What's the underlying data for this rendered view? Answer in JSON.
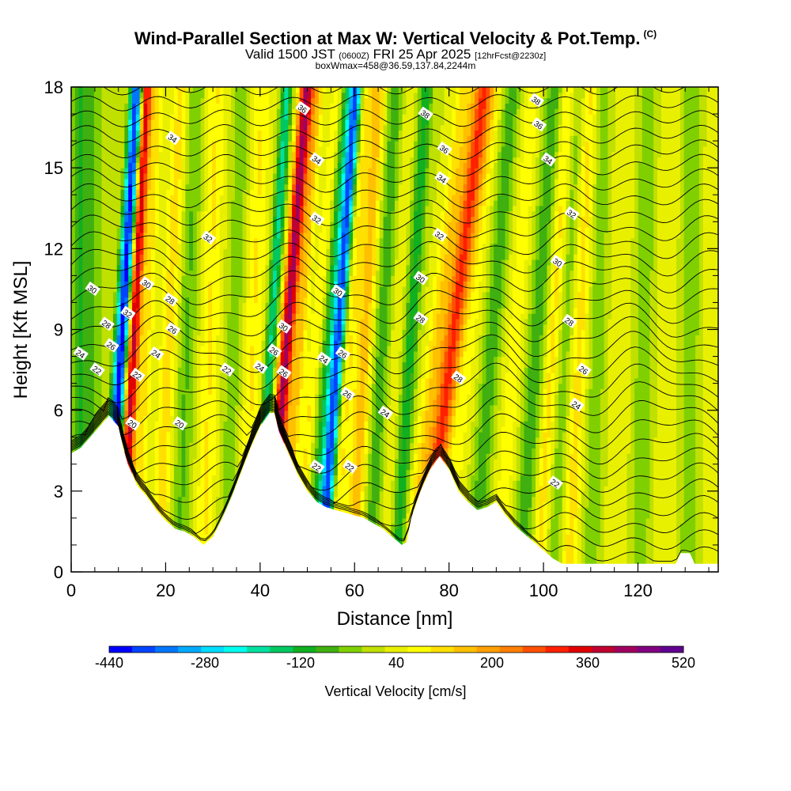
{
  "header": {
    "title": "Wind-Parallel Section at Max W: Vertical Velocity & Pot.Temp.",
    "copyright": "(C)",
    "subtitle_a": "Valid 1500 JST",
    "subtitle_b": "(0600Z)",
    "subtitle_c": "FRI 25 Apr 2025",
    "subtitle_d": "[12hrFcst@2230z]",
    "info": "boxWmax=458@36.59,137.84,2244m"
  },
  "chart_data": {
    "type": "heatmap",
    "xlabel": "Distance [nm]",
    "ylabel": "Height [Kft MSL]",
    "xlim": [
      0,
      137
    ],
    "ylim": [
      0,
      18
    ],
    "x_ticks": [
      0,
      20,
      40,
      60,
      80,
      100,
      120
    ],
    "y_ticks": [
      0,
      3,
      6,
      9,
      12,
      15,
      18
    ],
    "grid": false,
    "colorbar": {
      "title": "Vertical Velocity [cm/s]",
      "min": -440,
      "max": 520,
      "tick_labels": [
        -440,
        -280,
        -120,
        40,
        200,
        360,
        520
      ],
      "colors": [
        "#0000ff",
        "#0044ff",
        "#0077ff",
        "#00aaff",
        "#00ddff",
        "#00ffee",
        "#00e0a0",
        "#00c860",
        "#10b020",
        "#40b010",
        "#80d000",
        "#c0e000",
        "#e8f000",
        "#ffff00",
        "#ffe000",
        "#ffc000",
        "#ffa000",
        "#ff8000",
        "#ff5000",
        "#ff2000",
        "#e00000",
        "#c00030",
        "#a00060",
        "#800080",
        "#600090"
      ]
    },
    "terrain": [
      {
        "x": 0,
        "h": 4.4
      },
      {
        "x": 2,
        "h": 4.6
      },
      {
        "x": 4,
        "h": 5.0
      },
      {
        "x": 6,
        "h": 5.4
      },
      {
        "x": 8,
        "h": 5.8
      },
      {
        "x": 10,
        "h": 5.4
      },
      {
        "x": 11,
        "h": 4.6
      },
      {
        "x": 12,
        "h": 4.0
      },
      {
        "x": 14,
        "h": 3.2
      },
      {
        "x": 16,
        "h": 2.8
      },
      {
        "x": 18,
        "h": 2.3
      },
      {
        "x": 20,
        "h": 1.9
      },
      {
        "x": 22,
        "h": 1.6
      },
      {
        "x": 24,
        "h": 1.5
      },
      {
        "x": 26,
        "h": 1.3
      },
      {
        "x": 28,
        "h": 1.0
      },
      {
        "x": 30,
        "h": 1.3
      },
      {
        "x": 32,
        "h": 2.0
      },
      {
        "x": 34,
        "h": 2.8
      },
      {
        "x": 36,
        "h": 3.7
      },
      {
        "x": 38,
        "h": 4.6
      },
      {
        "x": 40,
        "h": 5.4
      },
      {
        "x": 42,
        "h": 5.9
      },
      {
        "x": 43,
        "h": 5.9
      },
      {
        "x": 44,
        "h": 5.2
      },
      {
        "x": 46,
        "h": 4.4
      },
      {
        "x": 48,
        "h": 3.6
      },
      {
        "x": 50,
        "h": 3.0
      },
      {
        "x": 52,
        "h": 2.6
      },
      {
        "x": 54,
        "h": 2.4
      },
      {
        "x": 56,
        "h": 2.3
      },
      {
        "x": 58,
        "h": 2.2
      },
      {
        "x": 60,
        "h": 2.1
      },
      {
        "x": 62,
        "h": 2.0
      },
      {
        "x": 64,
        "h": 1.8
      },
      {
        "x": 66,
        "h": 1.6
      },
      {
        "x": 68,
        "h": 1.3
      },
      {
        "x": 70,
        "h": 1.0
      },
      {
        "x": 71,
        "h": 1.1
      },
      {
        "x": 72,
        "h": 2.0
      },
      {
        "x": 74,
        "h": 3.0
      },
      {
        "x": 76,
        "h": 3.8
      },
      {
        "x": 78,
        "h": 4.3
      },
      {
        "x": 80,
        "h": 3.8
      },
      {
        "x": 82,
        "h": 3.0
      },
      {
        "x": 84,
        "h": 2.6
      },
      {
        "x": 86,
        "h": 2.3
      },
      {
        "x": 88,
        "h": 2.4
      },
      {
        "x": 90,
        "h": 2.6
      },
      {
        "x": 92,
        "h": 2.1
      },
      {
        "x": 94,
        "h": 1.7
      },
      {
        "x": 96,
        "h": 1.4
      },
      {
        "x": 98,
        "h": 1.1
      },
      {
        "x": 100,
        "h": 0.8
      },
      {
        "x": 102,
        "h": 0.5
      },
      {
        "x": 104,
        "h": 0.3
      },
      {
        "x": 110,
        "h": 0.3
      },
      {
        "x": 120,
        "h": 0.3
      },
      {
        "x": 128,
        "h": 0.3
      },
      {
        "x": 129,
        "h": 0.7
      },
      {
        "x": 131,
        "h": 0.7
      },
      {
        "x": 132,
        "h": 0.3
      },
      {
        "x": 137,
        "h": 0.3
      }
    ],
    "velocity_bands": [
      {
        "x": 2,
        "tilt": 0.0,
        "w": 2.0,
        "v": -120
      },
      {
        "x": 5,
        "tilt": 0.0,
        "w": 1.5,
        "v": -60
      },
      {
        "x": 9.5,
        "tilt": 0.35,
        "w": 1.2,
        "v": -360
      },
      {
        "x": 10.5,
        "tilt": 0.35,
        "w": 1.0,
        "v": -200
      },
      {
        "x": 12.5,
        "tilt": 0.28,
        "w": 1.4,
        "v": 360
      },
      {
        "x": 15.5,
        "tilt": 0.25,
        "w": 1.2,
        "v": 80
      },
      {
        "x": 20,
        "tilt": 0.28,
        "w": 1.8,
        "v": 100
      },
      {
        "x": 24,
        "tilt": 0.2,
        "w": 2.0,
        "v": -80
      },
      {
        "x": 29,
        "tilt": 0.15,
        "w": 2.0,
        "v": 80
      },
      {
        "x": 34,
        "tilt": 0.2,
        "w": 2.0,
        "v": -60
      },
      {
        "x": 38,
        "tilt": 0.2,
        "w": 2.0,
        "v": 80
      },
      {
        "x": 41.5,
        "tilt": 0.35,
        "w": 1.2,
        "v": -200
      },
      {
        "x": 44.5,
        "tilt": 0.45,
        "w": 1.5,
        "v": 400
      },
      {
        "x": 47.5,
        "tilt": 0.4,
        "w": 1.3,
        "v": 120
      },
      {
        "x": 50.5,
        "tilt": 0.5,
        "w": 1.2,
        "v": 80
      },
      {
        "x": 53.5,
        "tilt": 0.4,
        "w": 1.5,
        "v": -120
      },
      {
        "x": 55.5,
        "tilt": 0.4,
        "w": 1.3,
        "v": -400
      },
      {
        "x": 58,
        "tilt": 0.35,
        "w": 1.5,
        "v": 80
      },
      {
        "x": 61.5,
        "tilt": 0.3,
        "w": 1.8,
        "v": 140
      },
      {
        "x": 65,
        "tilt": 0.3,
        "w": 2.0,
        "v": -100
      },
      {
        "x": 68,
        "tilt": 0.3,
        "w": 1.5,
        "v": 40
      },
      {
        "x": 71,
        "tilt": 0.35,
        "w": 1.5,
        "v": -140
      },
      {
        "x": 75.5,
        "tilt": 0.65,
        "w": 1.8,
        "v": 100
      },
      {
        "x": 79,
        "tilt": 0.7,
        "w": 2.2,
        "v": 280
      },
      {
        "x": 83.5,
        "tilt": 0.55,
        "w": 1.8,
        "v": 40
      },
      {
        "x": 88,
        "tilt": 0.45,
        "w": 2.0,
        "v": -100
      },
      {
        "x": 93,
        "tilt": 0.4,
        "w": 2.2,
        "v": 60
      },
      {
        "x": 97.5,
        "tilt": 0.4,
        "w": 2.2,
        "v": -100
      },
      {
        "x": 101,
        "tilt": 0.35,
        "w": 1.5,
        "v": 100
      },
      {
        "x": 104,
        "tilt": 0.3,
        "w": 1.8,
        "v": -60
      },
      {
        "x": 107,
        "tilt": 0.25,
        "w": 1.8,
        "v": 100
      },
      {
        "x": 111,
        "tilt": 0.15,
        "w": 2.2,
        "v": -60
      },
      {
        "x": 116,
        "tilt": 0.1,
        "w": 2.5,
        "v": 40
      },
      {
        "x": 121,
        "tilt": 0.1,
        "w": 2.5,
        "v": -60
      },
      {
        "x": 126,
        "tilt": 0.05,
        "w": 2.5,
        "v": 40
      },
      {
        "x": 131,
        "tilt": 0.05,
        "w": 2.5,
        "v": -60
      },
      {
        "x": 135,
        "tilt": 0.05,
        "w": 2.0,
        "v": 30
      }
    ],
    "theta_contour_labels": [
      {
        "x": 4.5,
        "y": 10.5,
        "v": "30"
      },
      {
        "x": 7.5,
        "y": 9.2,
        "v": "28"
      },
      {
        "x": 2,
        "y": 8.1,
        "v": "24"
      },
      {
        "x": 8.5,
        "y": 8.4,
        "v": "26"
      },
      {
        "x": 5.5,
        "y": 7.5,
        "v": "22"
      },
      {
        "x": 12,
        "y": 9.6,
        "v": "32"
      },
      {
        "x": 16,
        "y": 10.7,
        "v": "30"
      },
      {
        "x": 21,
        "y": 10.1,
        "v": "28"
      },
      {
        "x": 21.5,
        "y": 9.0,
        "v": "26"
      },
      {
        "x": 18,
        "y": 8.1,
        "v": "24"
      },
      {
        "x": 14,
        "y": 7.3,
        "v": "22"
      },
      {
        "x": 13,
        "y": 5.5,
        "v": "20"
      },
      {
        "x": 23,
        "y": 5.5,
        "v": "20"
      },
      {
        "x": 21.5,
        "y": 16.1,
        "v": "34"
      },
      {
        "x": 29,
        "y": 12.4,
        "v": "32"
      },
      {
        "x": 33,
        "y": 7.5,
        "v": "22"
      },
      {
        "x": 40,
        "y": 7.6,
        "v": "24"
      },
      {
        "x": 43,
        "y": 8.2,
        "v": "26"
      },
      {
        "x": 45,
        "y": 7.4,
        "v": "26"
      },
      {
        "x": 45,
        "y": 9.1,
        "v": "30"
      },
      {
        "x": 49,
        "y": 17.2,
        "v": "36"
      },
      {
        "x": 52,
        "y": 15.3,
        "v": "34"
      },
      {
        "x": 52,
        "y": 13.1,
        "v": "32"
      },
      {
        "x": 56.5,
        "y": 10.4,
        "v": "30"
      },
      {
        "x": 53.5,
        "y": 7.9,
        "v": "24"
      },
      {
        "x": 57.5,
        "y": 8.1,
        "v": "26"
      },
      {
        "x": 58.5,
        "y": 6.6,
        "v": "26"
      },
      {
        "x": 52,
        "y": 3.9,
        "v": "22"
      },
      {
        "x": 59,
        "y": 3.9,
        "v": "22"
      },
      {
        "x": 66.5,
        "y": 5.9,
        "v": "24"
      },
      {
        "x": 75,
        "y": 17.0,
        "v": "38"
      },
      {
        "x": 79,
        "y": 15.7,
        "v": "36"
      },
      {
        "x": 78.5,
        "y": 14.6,
        "v": "34"
      },
      {
        "x": 78,
        "y": 12.5,
        "v": "32"
      },
      {
        "x": 74,
        "y": 10.9,
        "v": "30"
      },
      {
        "x": 74,
        "y": 9.4,
        "v": "28"
      },
      {
        "x": 82,
        "y": 7.2,
        "v": "28"
      },
      {
        "x": 98.5,
        "y": 17.5,
        "v": "38"
      },
      {
        "x": 99,
        "y": 16.6,
        "v": "36"
      },
      {
        "x": 101,
        "y": 15.3,
        "v": "34"
      },
      {
        "x": 106,
        "y": 13.3,
        "v": "32"
      },
      {
        "x": 103,
        "y": 11.5,
        "v": "30"
      },
      {
        "x": 105.5,
        "y": 9.3,
        "v": "28"
      },
      {
        "x": 108.5,
        "y": 7.5,
        "v": "26"
      },
      {
        "x": 107,
        "y": 6.2,
        "v": "24"
      },
      {
        "x": 102.5,
        "y": 3.3,
        "v": "22"
      }
    ]
  }
}
